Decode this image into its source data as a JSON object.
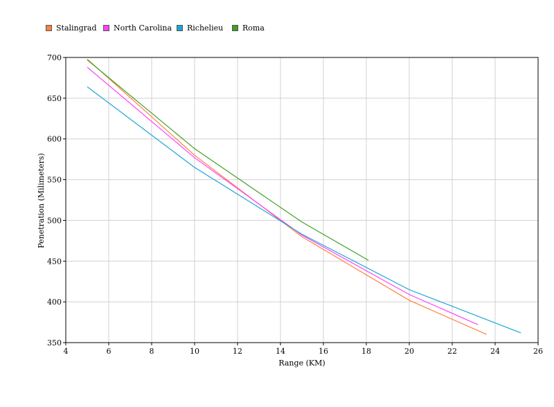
{
  "chart_data": {
    "type": "line",
    "title": "",
    "xlabel": "Range (KM)",
    "ylabel": "Penetration (Milimeters)",
    "xlim": [
      4,
      26
    ],
    "ylim": [
      350,
      700
    ],
    "xticks": [
      4,
      6,
      8,
      10,
      12,
      14,
      16,
      18,
      20,
      22,
      24,
      26
    ],
    "yticks": [
      350,
      400,
      450,
      500,
      550,
      600,
      650,
      700
    ],
    "grid": true,
    "legend_position": "top-left",
    "series": [
      {
        "name": "Stalingrad",
        "color": "#ff8040",
        "x": [
          5,
          10,
          15,
          20,
          23.6
        ],
        "y": [
          698,
          580,
          480,
          402,
          360
        ]
      },
      {
        "name": "North Carolina",
        "color": "#ff40ff",
        "x": [
          5,
          10,
          15,
          20,
          23.2
        ],
        "y": [
          688,
          577,
          482,
          409,
          372
        ]
      },
      {
        "name": "Richelieu",
        "color": "#1ca4d4",
        "x": [
          5,
          10,
          15,
          20,
          25.2
        ],
        "y": [
          664,
          565,
          483,
          415,
          362
        ]
      },
      {
        "name": "Roma",
        "color": "#40a020",
        "x": [
          5,
          10,
          15,
          18.1
        ],
        "y": [
          697,
          588,
          498,
          451
        ]
      }
    ]
  }
}
